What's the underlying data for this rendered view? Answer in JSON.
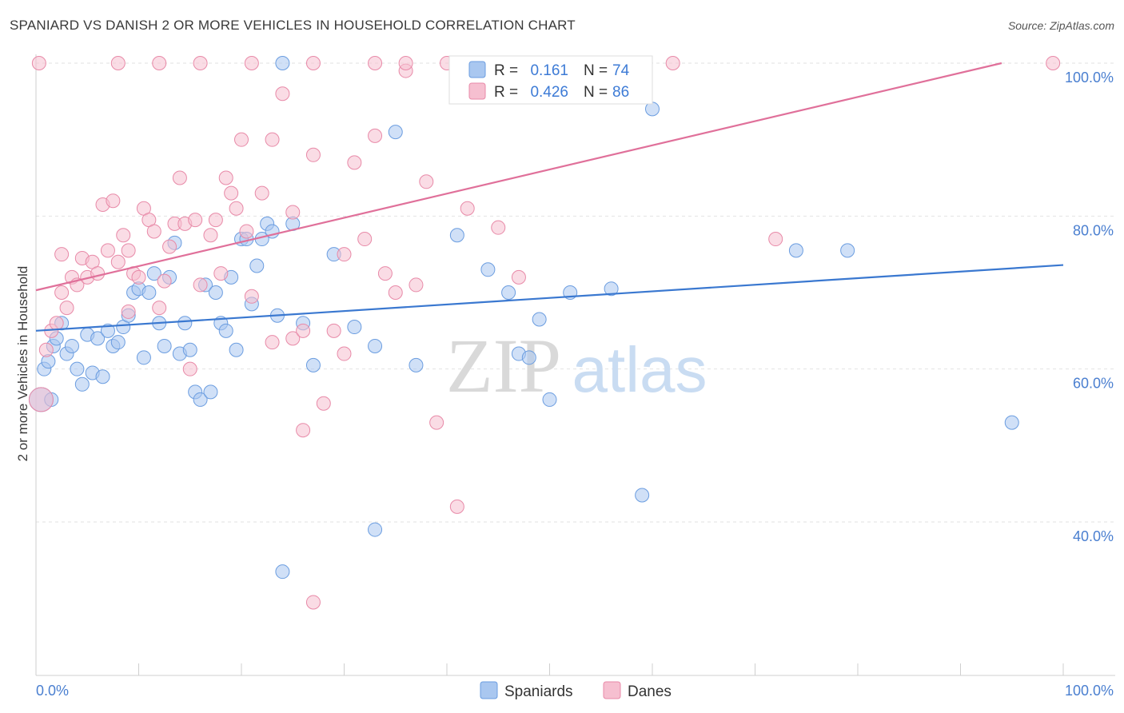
{
  "title": "SPANIARD VS DANISH 2 OR MORE VEHICLES IN HOUSEHOLD CORRELATION CHART",
  "source": "Source: ZipAtlas.com",
  "watermark": {
    "left": "ZIP",
    "right": "atlas"
  },
  "legend": {
    "rows": [
      {
        "r_label": "R =",
        "r_value": "0.161",
        "n_label": "N =",
        "n_value": "74",
        "color": "#a9c7f0",
        "stroke": "#6b9de0"
      },
      {
        "r_label": "R =",
        "r_value": "0.426",
        "n_label": "N =",
        "n_value": "86",
        "color": "#f6bfd0",
        "stroke": "#e88aa8"
      }
    ]
  },
  "bottom_legend": [
    {
      "label": "Spaniards",
      "color": "#a9c7f0",
      "stroke": "#6b9de0"
    },
    {
      "label": "Danes",
      "color": "#f6bfd0",
      "stroke": "#e88aa8"
    }
  ],
  "chart_data": {
    "type": "scatter",
    "title": "SPANIARD VS DANISH 2 OR MORE VEHICLES IN HOUSEHOLD CORRELATION CHART",
    "xlabel": "",
    "ylabel": "2 or more Vehicles in Household",
    "xlim": [
      0,
      100
    ],
    "ylim": [
      20,
      100
    ],
    "x_tick_labels": [
      "0.0%",
      "100.0%"
    ],
    "y_ticks": [
      40,
      60,
      80,
      100
    ],
    "y_tick_labels": [
      "40.0%",
      "60.0%",
      "80.0%",
      "100.0%"
    ],
    "grid": true,
    "series": [
      {
        "name": "Spaniards",
        "color": "#a9c7f0",
        "stroke": "#6b9de0",
        "trend": {
          "x": [
            0,
            100
          ],
          "y": [
            65.0,
            73.6
          ],
          "color": "#3a78d0"
        },
        "points": [
          [
            0.5,
            56
          ],
          [
            0.8,
            60
          ],
          [
            1.2,
            61
          ],
          [
            1.7,
            63
          ],
          [
            2,
            64
          ],
          [
            2.5,
            66
          ],
          [
            3,
            62
          ],
          [
            3.5,
            63
          ],
          [
            4,
            60
          ],
          [
            4.5,
            58
          ],
          [
            5,
            64.5
          ],
          [
            5.5,
            59.5
          ],
          [
            6,
            64
          ],
          [
            6.5,
            59
          ],
          [
            7,
            65
          ],
          [
            7.5,
            63
          ],
          [
            8,
            63.5
          ],
          [
            8.5,
            65.5
          ],
          [
            9,
            67
          ],
          [
            9.5,
            70
          ],
          [
            10,
            70.5
          ],
          [
            10.5,
            61.5
          ],
          [
            11,
            70
          ],
          [
            11.5,
            72.5
          ],
          [
            12,
            66
          ],
          [
            12.5,
            63
          ],
          [
            13,
            72
          ],
          [
            13.5,
            76.5
          ],
          [
            14,
            62
          ],
          [
            14.5,
            66
          ],
          [
            15,
            62.5
          ],
          [
            15.5,
            57
          ],
          [
            16,
            56
          ],
          [
            16.5,
            71
          ],
          [
            17,
            57
          ],
          [
            17.5,
            70
          ],
          [
            18,
            66
          ],
          [
            18.5,
            65
          ],
          [
            19,
            72
          ],
          [
            19.5,
            62.5
          ],
          [
            20,
            77
          ],
          [
            20.5,
            77
          ],
          [
            21,
            68.5
          ],
          [
            21.5,
            73.5
          ],
          [
            22,
            77
          ],
          [
            22.5,
            79
          ],
          [
            23,
            78
          ],
          [
            23.5,
            67
          ],
          [
            24,
            33.5
          ],
          [
            24,
            100
          ],
          [
            25,
            79
          ],
          [
            26,
            66
          ],
          [
            27,
            60.5
          ],
          [
            29,
            75
          ],
          [
            31,
            65.5
          ],
          [
            33,
            63
          ],
          [
            33,
            39
          ],
          [
            35,
            91
          ],
          [
            37,
            60.5
          ],
          [
            41,
            77.5
          ],
          [
            44,
            73
          ],
          [
            46,
            70
          ],
          [
            47,
            62
          ],
          [
            48,
            61.5
          ],
          [
            49,
            66.5
          ],
          [
            50,
            56
          ],
          [
            52,
            70
          ],
          [
            56,
            70.5
          ],
          [
            59,
            43.5
          ],
          [
            60,
            94
          ],
          [
            74,
            75.5
          ],
          [
            79,
            75.5
          ],
          [
            95,
            53
          ],
          [
            1.5,
            56
          ]
        ]
      },
      {
        "name": "Danes",
        "color": "#f6bfd0",
        "stroke": "#e88aa8",
        "trend": {
          "x": [
            0,
            94
          ],
          "y": [
            70.3,
            100
          ],
          "color": "#e0709a"
        },
        "points": [
          [
            0.5,
            56
          ],
          [
            1,
            62.5
          ],
          [
            1.5,
            65
          ],
          [
            2,
            66
          ],
          [
            2.5,
            70
          ],
          [
            3,
            68
          ],
          [
            3.5,
            72
          ],
          [
            4,
            71
          ],
          [
            4.5,
            74.5
          ],
          [
            5,
            72
          ],
          [
            5.5,
            74
          ],
          [
            6,
            72.5
          ],
          [
            6.5,
            81.5
          ],
          [
            7,
            75.5
          ],
          [
            7.5,
            82
          ],
          [
            8,
            74
          ],
          [
            8.5,
            77.5
          ],
          [
            9,
            75.5
          ],
          [
            9.5,
            72.5
          ],
          [
            10,
            72
          ],
          [
            10.5,
            81
          ],
          [
            11,
            79.5
          ],
          [
            11.5,
            78
          ],
          [
            12,
            68
          ],
          [
            12.5,
            71.5
          ],
          [
            13,
            76
          ],
          [
            13.5,
            79
          ],
          [
            14,
            85
          ],
          [
            14.5,
            79
          ],
          [
            15,
            60
          ],
          [
            15.5,
            79.5
          ],
          [
            16,
            71
          ],
          [
            17,
            77.5
          ],
          [
            17.5,
            79.5
          ],
          [
            18,
            72.5
          ],
          [
            18.5,
            85
          ],
          [
            19,
            83
          ],
          [
            19.5,
            81
          ],
          [
            20,
            90
          ],
          [
            20.5,
            78
          ],
          [
            21,
            69.5
          ],
          [
            22,
            83
          ],
          [
            23,
            90
          ],
          [
            24,
            96
          ],
          [
            25,
            80.5
          ],
          [
            25,
            64
          ],
          [
            26,
            65
          ],
          [
            26,
            52
          ],
          [
            27,
            88
          ],
          [
            28,
            55.5
          ],
          [
            29,
            65
          ],
          [
            30,
            75
          ],
          [
            31,
            87
          ],
          [
            32,
            77
          ],
          [
            33,
            90.5
          ],
          [
            34,
            72.5
          ],
          [
            35,
            70
          ],
          [
            36,
            99
          ],
          [
            37,
            71
          ],
          [
            38,
            84.5
          ],
          [
            39,
            53
          ],
          [
            40,
            100
          ],
          [
            41,
            42
          ],
          [
            42,
            81
          ],
          [
            45,
            78.5
          ],
          [
            47,
            72
          ],
          [
            48,
            100
          ],
          [
            50,
            100
          ],
          [
            52,
            100
          ],
          [
            54,
            100
          ],
          [
            62,
            100
          ],
          [
            72,
            77
          ],
          [
            99,
            100
          ],
          [
            0.3,
            100
          ],
          [
            9,
            67.5
          ],
          [
            23,
            63.5
          ],
          [
            21,
            100
          ],
          [
            27,
            29.5
          ],
          [
            30,
            62
          ],
          [
            36,
            100
          ],
          [
            12,
            100
          ],
          [
            8,
            100
          ],
          [
            16,
            100
          ],
          [
            33,
            100
          ],
          [
            27,
            100
          ],
          [
            2.5,
            75
          ]
        ]
      }
    ]
  }
}
